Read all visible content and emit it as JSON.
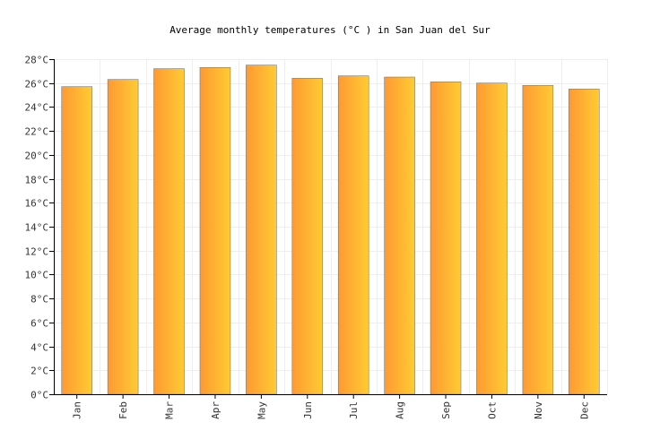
{
  "chart_data": {
    "type": "bar",
    "title": "Average monthly temperatures (°C ) in San Juan del Sur",
    "xlabel": "",
    "ylabel": "",
    "categories": [
      "Jan",
      "Feb",
      "Mar",
      "Apr",
      "May",
      "Jun",
      "Jul",
      "Aug",
      "Sep",
      "Oct",
      "Nov",
      "Dec"
    ],
    "values": [
      25.7,
      26.3,
      27.2,
      27.3,
      27.5,
      26.4,
      26.6,
      26.5,
      26.1,
      26.0,
      25.8,
      25.5
    ],
    "ylim": [
      0,
      28
    ],
    "yticks": [
      "0°C",
      "2°C",
      "4°C",
      "6°C",
      "8°C",
      "10°C",
      "12°C",
      "14°C",
      "16°C",
      "18°C",
      "20°C",
      "22°C",
      "24°C",
      "26°C",
      "28°C"
    ],
    "grid": true,
    "legend": "none",
    "colors": {
      "bar_start": "#ff9933",
      "bar_end": "#ffcc33",
      "bar_stroke": "#777777",
      "grid": "#eeeeee",
      "axis": "#000000"
    }
  }
}
